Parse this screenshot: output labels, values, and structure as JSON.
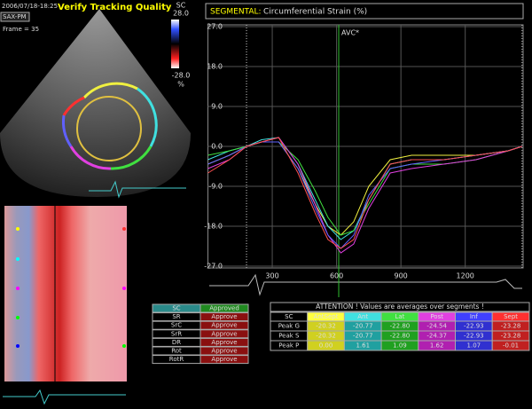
{
  "header": {
    "timestamp": "2006/07/18-18:25",
    "title": "Verify Tracking Quality",
    "view": "SAX-PM",
    "frame": "Frame = 35"
  },
  "colorbar": {
    "label": "SC",
    "max": "28.0",
    "min": "-28.0",
    "unit": "%"
  },
  "chart_data": {
    "type": "line",
    "title": "SEGMENTAL:",
    "subtitle": "Circumferential Strain (%)",
    "annotation": {
      "text": "AVC*",
      "x": 610
    },
    "markers_x": [
      180,
      1465
    ],
    "x": [
      0,
      100,
      180,
      250,
      330,
      420,
      500,
      560,
      620,
      680,
      750,
      850,
      950,
      1100,
      1250,
      1400,
      1465
    ],
    "series": [
      {
        "name": "AntSept",
        "color": "#f0f040",
        "values": [
          -4,
          -2,
          0,
          1,
          1,
          -5,
          -13,
          -18,
          -20,
          -17,
          -9,
          -3,
          -2,
          -2,
          -2,
          -1,
          0
        ]
      },
      {
        "name": "Ant",
        "color": "#40e0e0",
        "values": [
          -3,
          -1,
          0,
          1.5,
          2,
          -4,
          -12,
          -18,
          -21,
          -19,
          -12,
          -4,
          -3,
          -3,
          -2,
          -1,
          0
        ]
      },
      {
        "name": "Lat",
        "color": "#40e040",
        "values": [
          -2,
          -1,
          0,
          1,
          1,
          -3,
          -10,
          -16,
          -20,
          -19,
          -13,
          -5,
          -4,
          -4,
          -3,
          -1,
          0
        ]
      },
      {
        "name": "Post",
        "color": "#e040e0",
        "values": [
          -5,
          -3,
          0,
          1,
          2,
          -4,
          -13,
          -20,
          -24,
          -22,
          -14,
          -6,
          -5,
          -4,
          -3,
          -1,
          0
        ]
      },
      {
        "name": "Inf",
        "color": "#6060ff",
        "values": [
          -4,
          -2,
          0,
          1,
          1,
          -5,
          -14,
          -20,
          -23,
          -20,
          -11,
          -5,
          -4,
          -3,
          -2,
          -1,
          0
        ]
      },
      {
        "name": "Sept",
        "color": "#ff5050",
        "values": [
          -6,
          -3,
          0,
          1,
          2,
          -6,
          -15,
          -21,
          -23,
          -21,
          -12,
          -4,
          -3,
          -3,
          -2,
          -1,
          0
        ]
      }
    ],
    "xlim": [
      0,
      1470
    ],
    "ylim": [
      -27,
      27
    ],
    "xticks": [
      300,
      600,
      900,
      1200
    ],
    "yticks": [
      {
        "value": 27,
        "label": "27.0"
      },
      {
        "value": 18,
        "label": "18.0"
      },
      {
        "value": 9,
        "label": "9.0"
      },
      {
        "value": 0,
        "label": "0.0"
      },
      {
        "value": -9,
        "label": "-9.0"
      },
      {
        "value": -18,
        "label": "-18.0"
      },
      {
        "value": -27,
        "label": "-27.0"
      }
    ],
    "grid": true
  },
  "approval": {
    "rows": [
      [
        "SC",
        "Approved"
      ],
      [
        "SR",
        "Approve"
      ],
      [
        "SrC",
        "Approve"
      ],
      [
        "SrR",
        "Approve"
      ],
      [
        "DR",
        "Approve"
      ],
      [
        "Rot",
        "Approve"
      ],
      [
        "RotR",
        "Approve"
      ]
    ]
  },
  "table": {
    "notice": "ATTENTION !   Values are averages over segments !",
    "header": [
      "SC",
      "AntSept",
      "Ant",
      "Lat",
      "Post",
      "Inf",
      "Sept"
    ],
    "rows": [
      [
        "Peak G",
        "-20.32",
        "-20.77",
        "-22.80",
        "-24.54",
        "-22.93",
        "-23.28"
      ],
      [
        "Peak S",
        "-20.32",
        "-20.77",
        "-22.80",
        "-24.37",
        "-22.93",
        "-23.28"
      ],
      [
        "Peak P",
        "0.00",
        "1.61",
        "1.09",
        "1.62",
        "1.07",
        "-0.01"
      ]
    ]
  }
}
